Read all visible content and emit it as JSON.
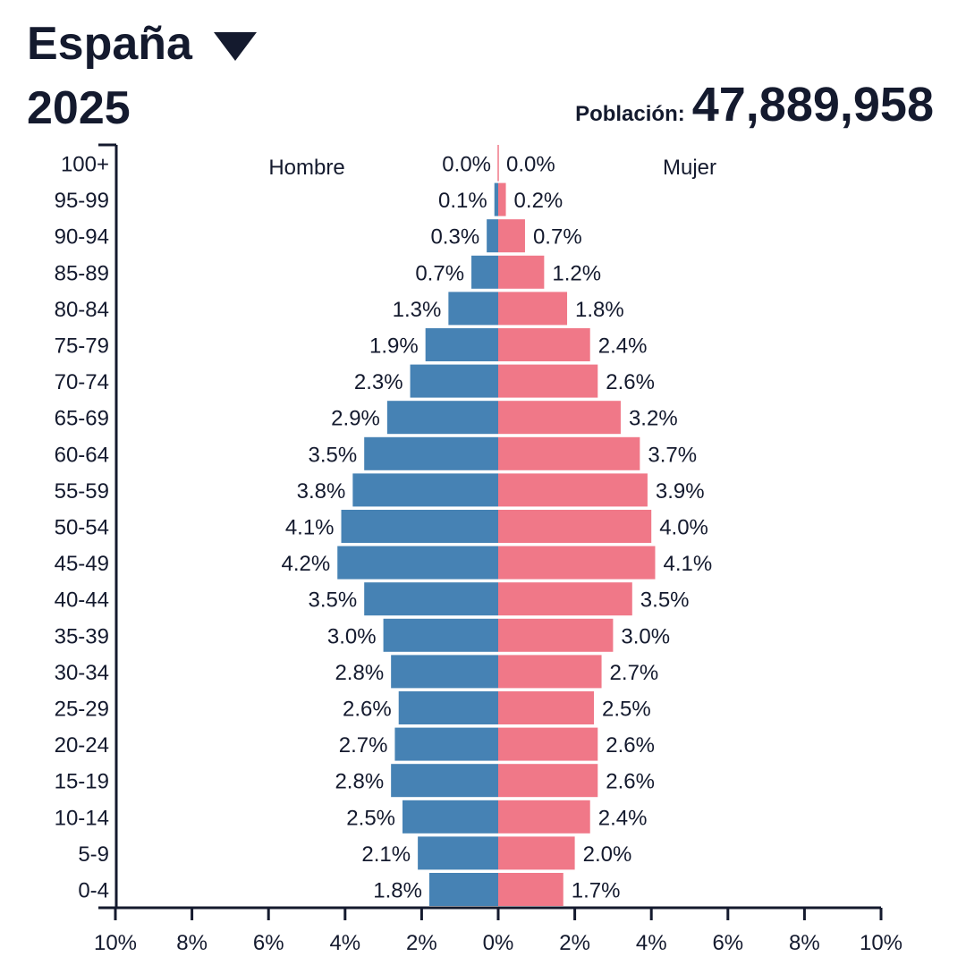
{
  "header": {
    "country": "España",
    "year": "2025",
    "population_label": "Población:",
    "population_value": "47,889,958"
  },
  "colors": {
    "male": "#4682b4",
    "female": "#f07888",
    "axis": "#141a2e"
  },
  "chart_data": {
    "type": "bar",
    "orientation": "horizontal-pyramid",
    "categories": [
      "100+",
      "95-99",
      "90-94",
      "85-89",
      "80-84",
      "75-79",
      "70-74",
      "65-69",
      "60-64",
      "55-59",
      "50-54",
      "45-49",
      "40-44",
      "35-39",
      "30-34",
      "25-29",
      "20-24",
      "15-19",
      "10-14",
      "5-9",
      "0-4"
    ],
    "series": [
      {
        "name": "Hombre",
        "values": [
          0.0,
          0.1,
          0.3,
          0.7,
          1.3,
          1.9,
          2.3,
          2.9,
          3.5,
          3.8,
          4.1,
          4.2,
          3.5,
          3.0,
          2.8,
          2.6,
          2.7,
          2.8,
          2.5,
          2.1,
          1.8
        ],
        "labels": [
          "0.0%",
          "0.1%",
          "0.3%",
          "0.7%",
          "1.3%",
          "1.9%",
          "2.3%",
          "2.9%",
          "3.5%",
          "3.8%",
          "4.1%",
          "4.2%",
          "3.5%",
          "3.0%",
          "2.8%",
          "2.6%",
          "2.7%",
          "2.8%",
          "2.5%",
          "2.1%",
          "1.8%"
        ]
      },
      {
        "name": "Mujer",
        "values": [
          0.0,
          0.2,
          0.7,
          1.2,
          1.8,
          2.4,
          2.6,
          3.2,
          3.7,
          3.9,
          4.0,
          4.1,
          3.5,
          3.0,
          2.7,
          2.5,
          2.6,
          2.6,
          2.4,
          2.0,
          1.7
        ],
        "labels": [
          "0.0%",
          "0.2%",
          "0.7%",
          "1.2%",
          "1.8%",
          "2.4%",
          "2.6%",
          "3.2%",
          "3.7%",
          "3.9%",
          "4.0%",
          "4.1%",
          "3.5%",
          "3.0%",
          "2.7%",
          "2.5%",
          "2.6%",
          "2.6%",
          "2.4%",
          "2.0%",
          "1.7%"
        ]
      }
    ],
    "xlim": [
      -10,
      10
    ],
    "x_ticks": [
      -10,
      -8,
      -6,
      -4,
      -2,
      0,
      2,
      4,
      6,
      8,
      10
    ],
    "x_tick_labels": [
      "10%",
      "8%",
      "6%",
      "4%",
      "2%",
      "0%",
      "2%",
      "4%",
      "6%",
      "8%",
      "10%"
    ],
    "grid": false
  }
}
